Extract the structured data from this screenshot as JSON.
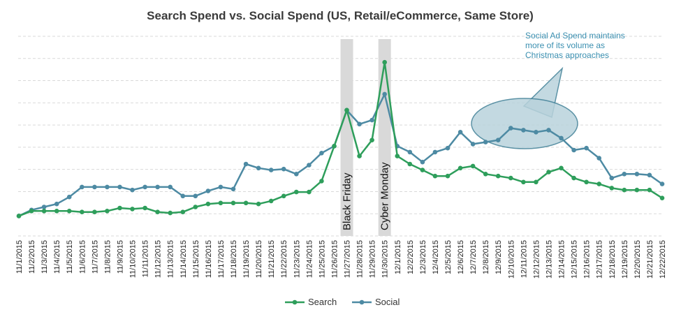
{
  "chart_data": {
    "type": "line",
    "title": "Search Spend vs. Social Spend (US, Retail/eCommerce, Same Store)",
    "xlabel": "",
    "ylabel": "",
    "ylim": [
      0,
      100
    ],
    "grid": true,
    "legend_position": "bottom",
    "categories": [
      "11/1/2015",
      "11/2/2015",
      "11/3/2015",
      "11/4/2015",
      "11/5/2015",
      "11/6/2015",
      "11/7/2015",
      "11/8/2015",
      "11/9/2015",
      "11/10/2015",
      "11/11/2015",
      "11/12/2015",
      "11/13/2015",
      "11/14/2015",
      "11/15/2015",
      "11/16/2015",
      "11/17/2015",
      "11/18/2015",
      "11/19/2015",
      "11/20/2015",
      "11/21/2015",
      "11/22/2015",
      "11/23/2015",
      "11/24/2015",
      "11/25/2015",
      "11/26/2015",
      "11/27/2015",
      "11/28/2015",
      "11/29/2015",
      "11/30/2015",
      "12/1/2015",
      "12/2/2015",
      "12/3/2015",
      "12/4/2015",
      "12/5/2015",
      "12/6/2015",
      "12/7/2015",
      "12/8/2015",
      "12/9/2015",
      "12/10/2015",
      "12/11/2015",
      "12/12/2015",
      "12/13/2015",
      "12/14/2015",
      "12/15/2015",
      "12/16/2015",
      "12/17/2015",
      "12/18/2015",
      "12/19/2015",
      "12/20/2015",
      "12/21/2015",
      "12/22/2015"
    ],
    "series": [
      {
        "name": "Search",
        "color": "#2e9e5b",
        "values": [
          10,
          12.5,
          12.5,
          12.5,
          12.5,
          12,
          12,
          12.5,
          14,
          13.5,
          14,
          12,
          11.5,
          12,
          14.5,
          16,
          16.5,
          16.5,
          16.5,
          16,
          17.5,
          20,
          22,
          22,
          27.5,
          45,
          63,
          40,
          48,
          87,
          40,
          36,
          33,
          30,
          30,
          34,
          35,
          31,
          30,
          29,
          27,
          27,
          32,
          34,
          29,
          27,
          26,
          24,
          23,
          23,
          23,
          19
        ]
      },
      {
        "name": "Social",
        "color": "#4d8aa3",
        "values": [
          10,
          13,
          14.5,
          16,
          19.5,
          24.5,
          24.5,
          24.5,
          24.5,
          23,
          24.5,
          24.5,
          24.5,
          20,
          20,
          22.5,
          24.5,
          23.5,
          36,
          34,
          33,
          33.5,
          31,
          35.5,
          41.5,
          45,
          63,
          56,
          58,
          71,
          45,
          42,
          37,
          42,
          44,
          52,
          46,
          47,
          48,
          54,
          53,
          52,
          53,
          49,
          43,
          44,
          39,
          29,
          31,
          31,
          30.5,
          26
        ]
      }
    ],
    "annotations": [
      {
        "label": "Black Friday",
        "x": "11/27/2015"
      },
      {
        "label": "Cyber Monday",
        "x": "11/30/2015"
      },
      {
        "label": "Social Ad Spend maintains more of its volume as Christmas approaches",
        "x": "12/11/2015"
      }
    ]
  },
  "callout_lines": [
    "Social Ad Spend maintains",
    "more of its volume as",
    "Christmas approaches"
  ]
}
